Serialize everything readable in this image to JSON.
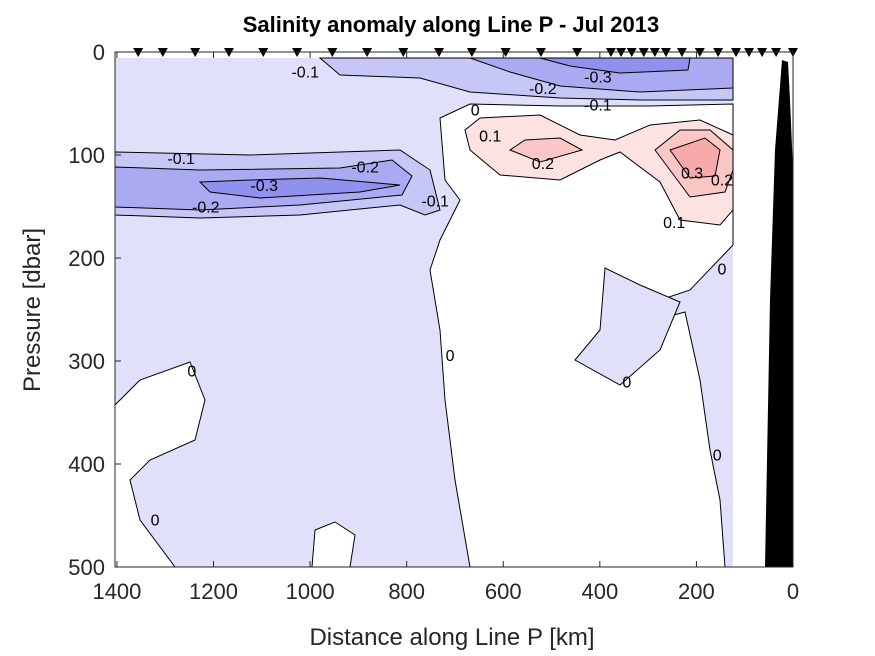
{
  "chart_data": {
    "type": "contour",
    "title": "Salinity anomaly along Line P - Jul 2013",
    "xlabel": "Distance along Line P [km]",
    "ylabel": "Pressure [dbar]",
    "xlim": [
      1404,
      0
    ],
    "ylim": [
      0,
      500
    ],
    "x_reversed": true,
    "y_reversed": true,
    "xticks": [
      1400,
      1200,
      1000,
      800,
      600,
      400,
      200,
      0
    ],
    "yticks": [
      0,
      100,
      200,
      300,
      400,
      500
    ],
    "contour_levels": [
      -0.3,
      -0.2,
      -0.1,
      0,
      0.1,
      0.2,
      0.3
    ],
    "colors": {
      "neg_0": "#e0e0fb",
      "neg_1": "#c7c7f7",
      "neg_2": "#aaaaf2",
      "neg_3": "#9090ee",
      "pos_0": "#ffffff",
      "pos_1": "#fde2e2",
      "pos_2": "#fbc6c6",
      "pos_3": "#f6aaaa",
      "land": "#000000"
    },
    "station_km": [
      1356,
      1305,
      1238,
      1168,
      1097,
      1027,
      954,
      882,
      807,
      733,
      665,
      595,
      522,
      447,
      377,
      356,
      334,
      309,
      286,
      263,
      230,
      193,
      155,
      118,
      91,
      64,
      35,
      0
    ],
    "contour_labels": [
      {
        "text": "-0.1",
        "km": 1010,
        "dbar": 19
      },
      {
        "text": "-0.3",
        "km": 404,
        "dbar": 24
      },
      {
        "text": "-0.2",
        "km": 518,
        "dbar": 35
      },
      {
        "text": "-0.1",
        "km": 404,
        "dbar": 51
      },
      {
        "text": "0",
        "km": 658,
        "dbar": 56
      },
      {
        "text": "0.1",
        "km": 627,
        "dbar": 81
      },
      {
        "text": "0.2",
        "km": 518,
        "dbar": 108
      },
      {
        "text": "0.3",
        "km": 209,
        "dbar": 117
      },
      {
        "text": "0.2",
        "km": 147,
        "dbar": 124
      },
      {
        "text": "0.1",
        "km": 246,
        "dbar": 165
      },
      {
        "text": "-0.1",
        "km": 1267,
        "dbar": 103
      },
      {
        "text": "-0.2",
        "km": 886,
        "dbar": 111
      },
      {
        "text": "-0.3",
        "km": 1095,
        "dbar": 129
      },
      {
        "text": "-0.2",
        "km": 1216,
        "dbar": 150
      },
      {
        "text": "-0.1",
        "km": 741,
        "dbar": 144
      },
      {
        "text": "0",
        "km": 147,
        "dbar": 210
      },
      {
        "text": "0",
        "km": 710,
        "dbar": 294
      },
      {
        "text": "0",
        "km": 1245,
        "dbar": 309
      },
      {
        "text": "0",
        "km": 344,
        "dbar": 320
      },
      {
        "text": "0",
        "km": 157,
        "dbar": 391
      },
      {
        "text": "0",
        "km": 1321,
        "dbar": 454
      }
    ]
  }
}
